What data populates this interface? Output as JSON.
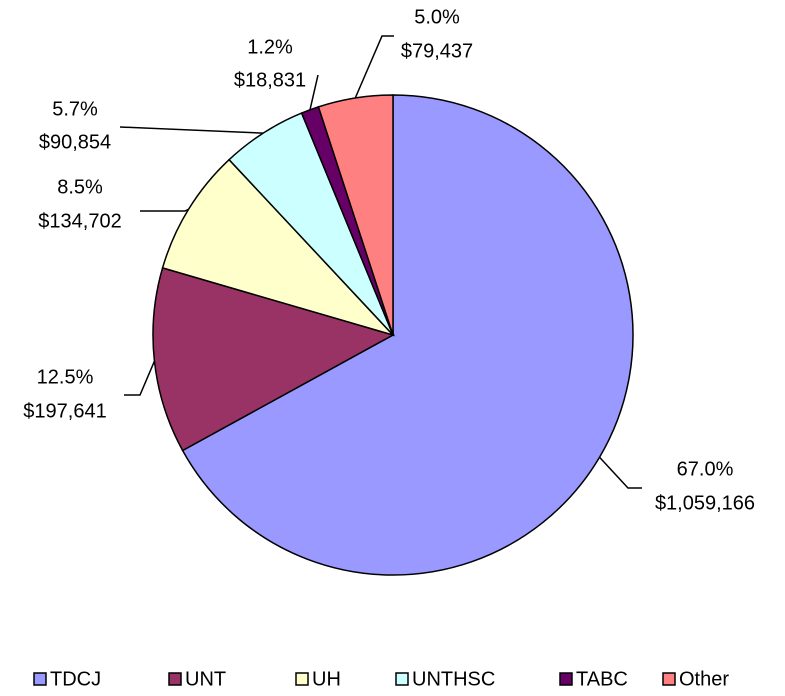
{
  "chart_data": {
    "type": "pie",
    "categories": [
      "TDCJ",
      "UNT",
      "UH",
      "UNTHSC",
      "TABC",
      "Other"
    ],
    "values": [
      1059166,
      197641,
      134702,
      90854,
      18831,
      79437
    ],
    "value_labels": [
      "$1,059,166",
      "$197,641",
      "$134,702",
      "$90,854",
      "$18,831",
      "$79,437"
    ],
    "percent_labels": [
      "67.0%",
      "12.5%",
      "8.5%",
      "5.7%",
      "1.2%",
      "5.0%"
    ],
    "colors": [
      "#9999ff",
      "#993366",
      "#ffffcc",
      "#ccffff",
      "#660066",
      "#ff8080"
    ],
    "legend": "bottom"
  }
}
